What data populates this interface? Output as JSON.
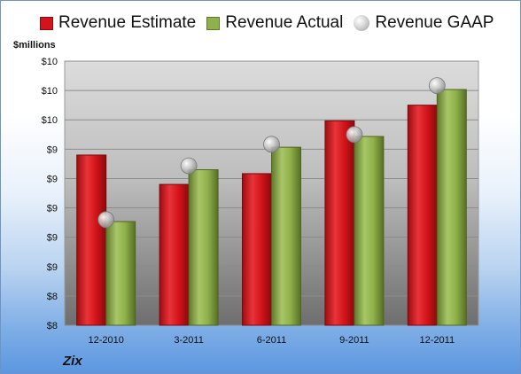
{
  "legend": {
    "estimate_label": "Revenue Estimate",
    "actual_label": "Revenue Actual",
    "gaap_label": "Revenue GAAP"
  },
  "unit_label": "$millions",
  "company_label": "Zix",
  "colors": {
    "estimate": "#d3141a",
    "actual": "#8fb04a",
    "gaap": "#c8c8c8"
  },
  "chart_data": {
    "type": "bar",
    "categories": [
      "12-2010",
      "3-2011",
      "6-2011",
      "9-2011",
      "12-2011"
    ],
    "series": [
      {
        "name": "Revenue Estimate",
        "values": [
          9.54,
          9.24,
          9.35,
          9.89,
          10.05
        ]
      },
      {
        "name": "Revenue Actual",
        "values": [
          8.86,
          9.39,
          9.62,
          9.73,
          10.21
        ]
      },
      {
        "name": "Revenue GAAP",
        "values": [
          8.88,
          9.43,
          9.65,
          9.75,
          10.25
        ]
      }
    ],
    "y_ticks": [
      "$8",
      "$8",
      "$9",
      "$9",
      "$9",
      "$9",
      "$9",
      "$10",
      "$10",
      "$10"
    ],
    "ylim": [
      7.8,
      10.5
    ],
    "ylabel": "$millions",
    "grid": true,
    "legend_position": "top"
  }
}
